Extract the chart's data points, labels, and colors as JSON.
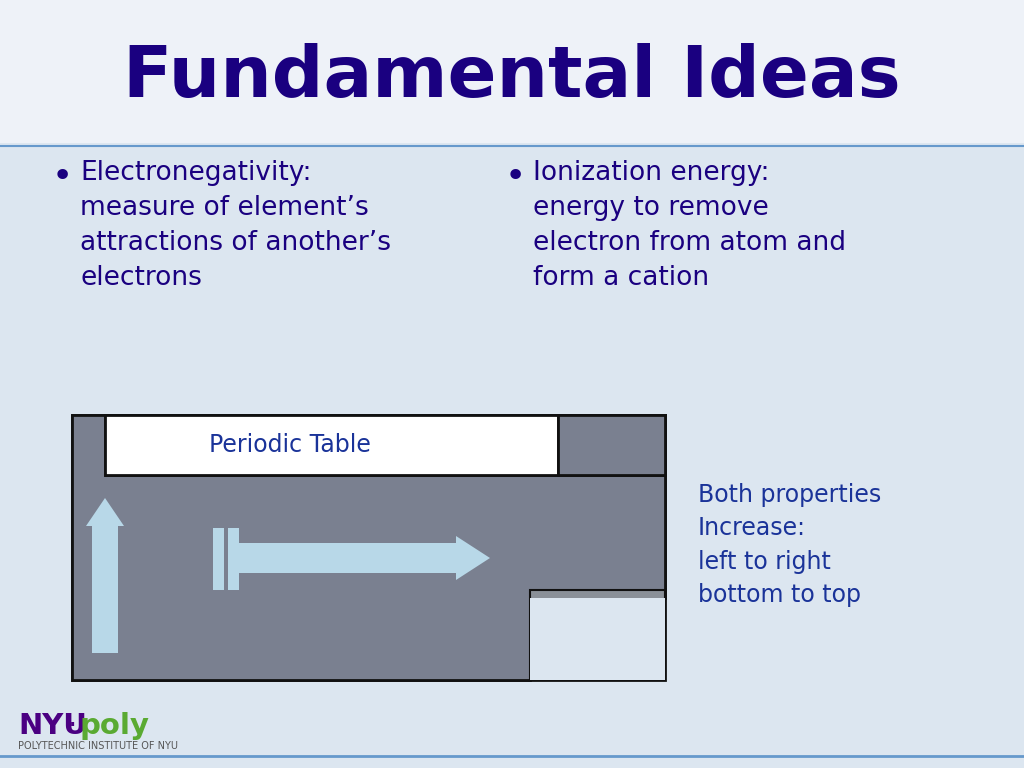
{
  "title": "Fundamental Ideas",
  "title_color": "#1a0080",
  "title_fontsize": 52,
  "bg_color": "#dce6f0",
  "bullet1_title": "Electronegativity:",
  "bullet1_body": "measure of element’s\nattractions of another’s\nelectrons",
  "bullet2_title": "Ionization energy:",
  "bullet2_body": "energy to remove\nelectron from atom and\nform a cation",
  "periodic_label": "Periodic Table",
  "periodic_label_color": "#1a3399",
  "right_text_lines": [
    "Both properties",
    "Increase:",
    "left to right",
    "bottom to top"
  ],
  "right_text_color": "#1a3399",
  "gray_color": "#7a8090",
  "white_color": "#ffffff",
  "arrow_color": "#b8d8e8",
  "border_color": "#111111",
  "bullet_color": "#1a0080",
  "body_color": "#1a0080",
  "nyu_nyu_color": "#4b0082",
  "nyu_poly_color": "#5aaa32",
  "line_color": "#6699cc"
}
